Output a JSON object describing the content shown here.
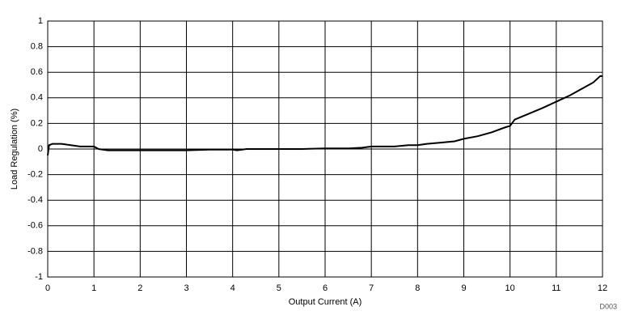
{
  "chart_data": {
    "type": "line",
    "x_label": "Output Current (A)",
    "y_label": "Load Regulation (%)",
    "annotation": "D003",
    "x": [
      0,
      0.03,
      0.1,
      0.3,
      0.5,
      0.7,
      1.0,
      1.1,
      1.3,
      1.5,
      2.0,
      2.5,
      3.0,
      3.5,
      4.0,
      4.1,
      4.3,
      5.0,
      5.5,
      6.0,
      6.5,
      6.8,
      7.0,
      7.5,
      7.8,
      8.0,
      8.2,
      8.5,
      8.8,
      9.0,
      9.3,
      9.6,
      9.9,
      10.0,
      10.1,
      10.3,
      10.5,
      10.7,
      11.0,
      11.3,
      11.6,
      11.8,
      11.95,
      12.0
    ],
    "series": [
      {
        "color": "#000000",
        "values": [
          -0.05,
          0.03,
          0.04,
          0.04,
          0.03,
          0.02,
          0.02,
          0.0,
          -0.01,
          -0.01,
          -0.01,
          -0.01,
          -0.01,
          -0.005,
          -0.005,
          -0.01,
          0.0,
          0.0,
          0.0,
          0.005,
          0.005,
          0.01,
          0.02,
          0.02,
          0.03,
          0.03,
          0.04,
          0.05,
          0.06,
          0.08,
          0.1,
          0.13,
          0.17,
          0.18,
          0.23,
          0.26,
          0.29,
          0.32,
          0.37,
          0.42,
          0.48,
          0.52,
          0.57,
          0.57
        ]
      }
    ],
    "xlim": [
      0,
      12
    ],
    "xticks": [
      0,
      1,
      2,
      3,
      4,
      5,
      6,
      7,
      8,
      9,
      10,
      11,
      12
    ],
    "ylim": [
      -1,
      1
    ],
    "yticks": [
      -1,
      -0.8,
      -0.6,
      -0.4,
      -0.2,
      0,
      0.2,
      0.4,
      0.6,
      0.8,
      1
    ],
    "grid": true
  }
}
